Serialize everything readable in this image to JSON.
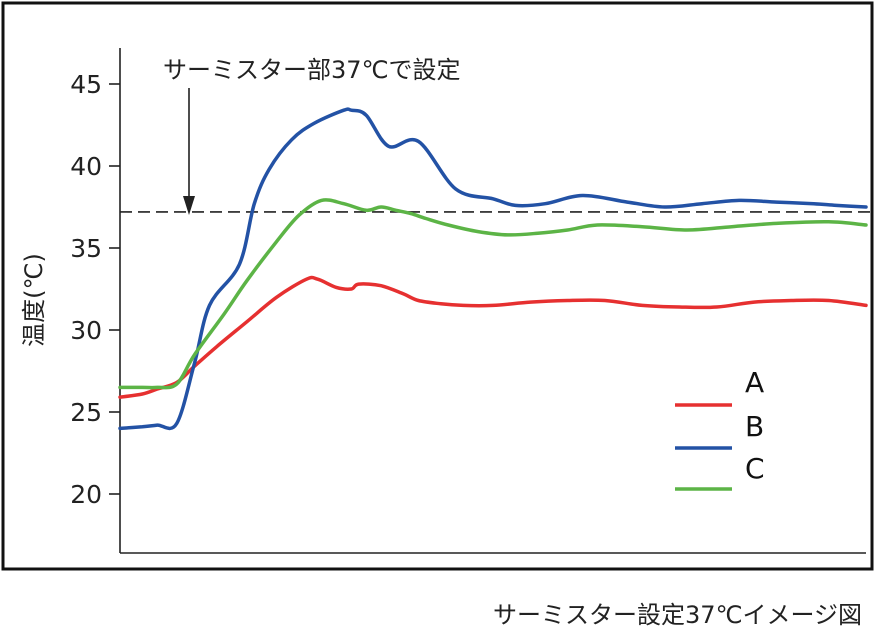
{
  "chart_data": {
    "type": "line",
    "ylabel": "温度(℃)",
    "ylim": [
      18,
      47
    ],
    "yticks": [
      20,
      25,
      30,
      35,
      40,
      45
    ],
    "reference": {
      "value": 37.2,
      "style": "dashed",
      "label": "サーミスター部37℃で設定"
    },
    "legend_position": "right",
    "series": [
      {
        "name": "A",
        "color": "#e63030",
        "x": [
          0,
          3,
          5,
          7.6,
          10,
          13,
          17,
          21,
          25,
          26.5,
          29,
          31,
          32,
          35,
          38,
          40,
          43,
          46,
          50,
          55,
          60,
          65,
          70,
          75,
          80,
          85,
          90,
          95,
          100
        ],
        "y": [
          25.9,
          26.1,
          26.4,
          26.8,
          27.8,
          29,
          30.5,
          32,
          33.1,
          33.1,
          32.6,
          32.5,
          32.8,
          32.7,
          32.2,
          31.8,
          31.6,
          31.5,
          31.5,
          31.7,
          31.8,
          31.8,
          31.5,
          31.4,
          31.4,
          31.7,
          31.8,
          31.8,
          31.5
        ]
      },
      {
        "name": "B",
        "color": "#2352a5",
        "x": [
          0,
          3,
          5,
          7.6,
          10,
          12,
          16,
          18,
          20,
          23,
          26,
          30,
          31,
          33,
          36,
          40,
          45,
          50,
          53,
          57,
          62,
          68,
          73,
          78,
          83,
          88,
          93,
          96,
          100
        ],
        "y": [
          24,
          24.1,
          24.2,
          24.3,
          28,
          31.5,
          34,
          37.7,
          39.8,
          41.6,
          42.6,
          43.4,
          43.4,
          43.1,
          41.2,
          41.5,
          38.6,
          38,
          37.6,
          37.7,
          38.2,
          37.8,
          37.5,
          37.7,
          37.9,
          37.8,
          37.7,
          37.6,
          37.5
        ]
      },
      {
        "name": "C",
        "color": "#5cb446",
        "x": [
          0,
          3,
          5,
          7.6,
          10,
          14,
          17,
          21,
          24,
          27,
          30,
          33,
          35,
          37,
          39,
          41,
          44,
          48,
          52,
          56,
          60,
          64,
          70,
          76,
          82,
          88,
          95,
          100
        ],
        "y": [
          26.5,
          26.5,
          26.5,
          26.7,
          28.5,
          31,
          33,
          35.4,
          37,
          37.9,
          37.7,
          37.3,
          37.5,
          37.3,
          37.1,
          36.8,
          36.4,
          36,
          35.8,
          35.9,
          36.1,
          36.4,
          36.3,
          36.1,
          36.3,
          36.5,
          36.6,
          36.4
        ]
      }
    ],
    "caption": "サーミスター設定37℃イメージ図"
  }
}
